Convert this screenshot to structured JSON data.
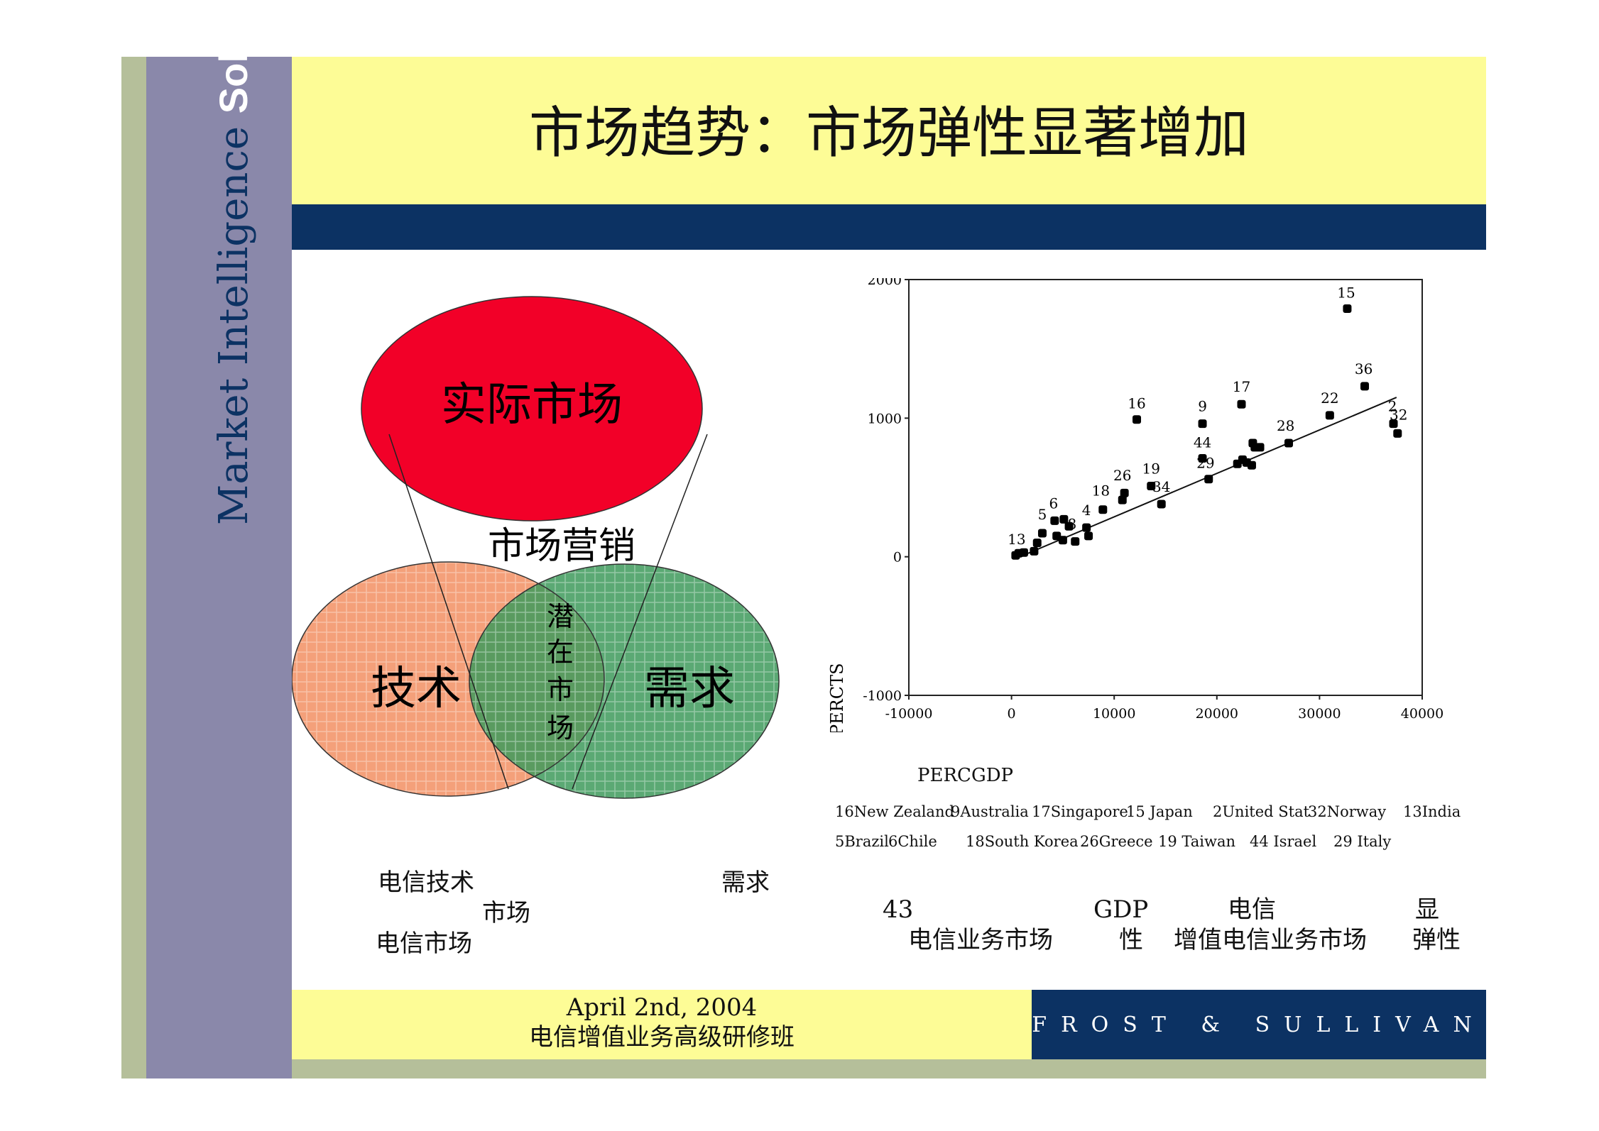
{
  "sidebar": {
    "brand_regular": "Market Intelligence ",
    "brand_bold": "Solutions"
  },
  "title": "市场趋势：市场弹性显著增加",
  "venn": {
    "top": "实际市场",
    "marketing": "市场营销",
    "left": "技术",
    "right": "需求",
    "overlap": [
      "潜",
      "在",
      "市",
      "场"
    ]
  },
  "left_notes": {
    "line1a": "电信技术",
    "line1b": "需求",
    "line2": "市场",
    "line3": "电信市场"
  },
  "right_notes": {
    "n43": "43",
    "gdp": "GDP",
    "dianxin": "电信",
    "xian": "显",
    "market": "电信业务市场",
    "xing": "性",
    "vas": "增值电信业务市场",
    "elastic": "弹性"
  },
  "legend": {
    "row1": [
      "16New Zealand",
      "9Australia",
      "17Singapore",
      "15 Japan",
      "2United Stat",
      "32Norway",
      "13India"
    ],
    "row2": [
      "5Brazil",
      "6Chile",
      "18South Korea",
      "26Greece",
      "19 Taiwan",
      "44 Israel",
      "29 Italy"
    ]
  },
  "footer": {
    "date": "April 2nd, 2004",
    "course": "电信增值业务高级研修班",
    "brand": "FROST & SULLIVAN"
  },
  "colors": {
    "olive": "#b5bf9a",
    "lavender": "#8a88aa",
    "yellow": "#fdfc96",
    "navy": "#0c3263",
    "red": "#f20028",
    "salmon": "#f4a07a",
    "green": "#3e9a5c"
  },
  "chart_data": {
    "type": "scatter",
    "xlabel": "PERCGDP",
    "ylabel": "PERCTS",
    "xlim": [
      -10000,
      40000
    ],
    "ylim": [
      -1000,
      2000
    ],
    "xticks": [
      "-10000",
      "0",
      "10000",
      "20000",
      "30000",
      "40000"
    ],
    "yticks": [
      "-1000",
      "0",
      "1000",
      "2000"
    ],
    "trendline": [
      [
        500,
        -10
      ],
      [
        37500,
        1150
      ]
    ],
    "points": [
      {
        "x": 400,
        "y": 10
      },
      {
        "x": 700,
        "y": 25
      },
      {
        "x": 1200,
        "y": 30
      },
      {
        "x": 2200,
        "y": 40
      },
      {
        "x": 2500,
        "y": 100
      },
      {
        "x": 3000,
        "y": 170
      },
      {
        "x": 4200,
        "y": 260
      },
      {
        "x": 4400,
        "y": 150
      },
      {
        "x": 5000,
        "y": 120
      },
      {
        "x": 5100,
        "y": 270
      },
      {
        "x": 5600,
        "y": 220
      },
      {
        "x": 6200,
        "y": 110
      },
      {
        "x": 7300,
        "y": 210
      },
      {
        "x": 7500,
        "y": 150
      },
      {
        "x": 8900,
        "y": 340
      },
      {
        "x": 10800,
        "y": 410
      },
      {
        "x": 11000,
        "y": 460
      },
      {
        "x": 12200,
        "y": 990
      },
      {
        "x": 13600,
        "y": 510
      },
      {
        "x": 14600,
        "y": 380
      },
      {
        "x": 18600,
        "y": 960
      },
      {
        "x": 18600,
        "y": 710
      },
      {
        "x": 19200,
        "y": 560
      },
      {
        "x": 22000,
        "y": 670
      },
      {
        "x": 22400,
        "y": 1100
      },
      {
        "x": 22500,
        "y": 700
      },
      {
        "x": 22900,
        "y": 680
      },
      {
        "x": 23400,
        "y": 660
      },
      {
        "x": 23500,
        "y": 820
      },
      {
        "x": 23700,
        "y": 790
      },
      {
        "x": 24200,
        "y": 790
      },
      {
        "x": 27000,
        "y": 820
      },
      {
        "x": 31000,
        "y": 1020
      },
      {
        "x": 32700,
        "y": 1790
      },
      {
        "x": 34400,
        "y": 1230
      },
      {
        "x": 37200,
        "y": 960
      },
      {
        "x": 37600,
        "y": 890
      }
    ],
    "point_labels": [
      {
        "text": "15",
        "x": 32600,
        "y": 1870
      },
      {
        "text": "36",
        "x": 34300,
        "y": 1320
      },
      {
        "text": "22",
        "x": 31000,
        "y": 1110
      },
      {
        "text": "17",
        "x": 22400,
        "y": 1190
      },
      {
        "text": "9",
        "x": 18600,
        "y": 1050
      },
      {
        "text": "16",
        "x": 12200,
        "y": 1070
      },
      {
        "text": "2",
        "x": 37100,
        "y": 1050
      },
      {
        "text": "32",
        "x": 37700,
        "y": 990
      },
      {
        "text": "28",
        "x": 26700,
        "y": 910
      },
      {
        "text": "44",
        "x": 18600,
        "y": 790
      },
      {
        "text": "29",
        "x": 18900,
        "y": 640
      },
      {
        "text": "19",
        "x": 13600,
        "y": 600
      },
      {
        "text": "34",
        "x": 14600,
        "y": 470
      },
      {
        "text": "26",
        "x": 10800,
        "y": 550
      },
      {
        "text": "18",
        "x": 8700,
        "y": 440
      },
      {
        "text": "6",
        "x": 4100,
        "y": 350
      },
      {
        "text": "5",
        "x": 3000,
        "y": 270
      },
      {
        "text": "4",
        "x": 7300,
        "y": 300
      },
      {
        "text": "8",
        "x": 5900,
        "y": 200
      },
      {
        "text": "13",
        "x": 500,
        "y": 90
      }
    ]
  }
}
